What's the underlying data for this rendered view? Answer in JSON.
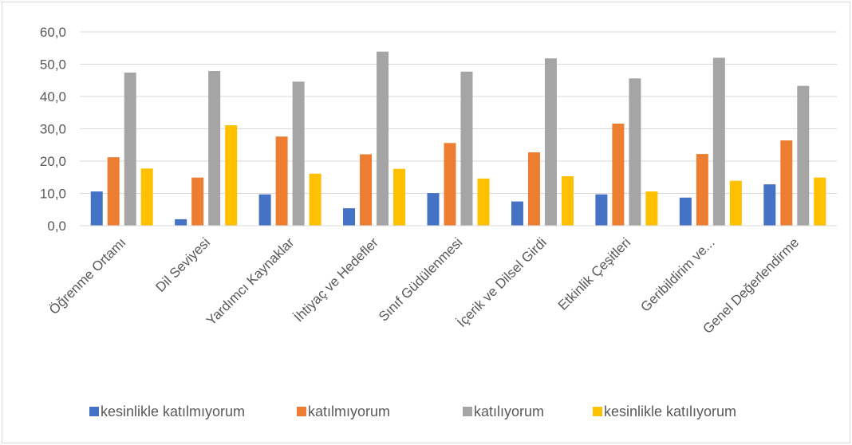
{
  "chart_data": {
    "type": "bar",
    "categories": [
      "Öğrenme Ortamı",
      "Dil Seviyesi",
      "Yardımcı Kaynaklar",
      "İhtiyaç ve Hedefler",
      "Sınıf Güdülenmesi",
      "İçerik ve Dilsel Girdi",
      "Etkinlik Çeşitleri",
      "Geribildirim ve...",
      "Genel Değerlendirme"
    ],
    "series": [
      {
        "name": "kesinlikle katılmıyorum",
        "color": "#4472C4",
        "values": [
          10.6,
          2.0,
          9.7,
          5.4,
          10.1,
          7.5,
          9.7,
          8.7,
          12.8
        ]
      },
      {
        "name": "katılmıyorum",
        "color": "#ED7D31",
        "values": [
          21.2,
          14.9,
          27.6,
          22.1,
          25.6,
          22.7,
          31.6,
          22.2,
          26.4
        ]
      },
      {
        "name": "katılıyorum",
        "color": "#A5A5A5",
        "values": [
          47.4,
          47.9,
          44.6,
          53.9,
          47.7,
          51.8,
          45.6,
          52.0,
          43.3
        ]
      },
      {
        "name": "kesinlikle katılıyorum",
        "color": "#FFC000",
        "values": [
          17.7,
          31.1,
          16.1,
          17.6,
          14.6,
          15.3,
          10.6,
          13.9,
          14.9
        ]
      }
    ],
    "yticks": [
      "0,0",
      "10,0",
      "20,0",
      "30,0",
      "40,0",
      "50,0",
      "60,0"
    ],
    "ylim": [
      0,
      60
    ],
    "grid": true,
    "legend": "bottom"
  }
}
